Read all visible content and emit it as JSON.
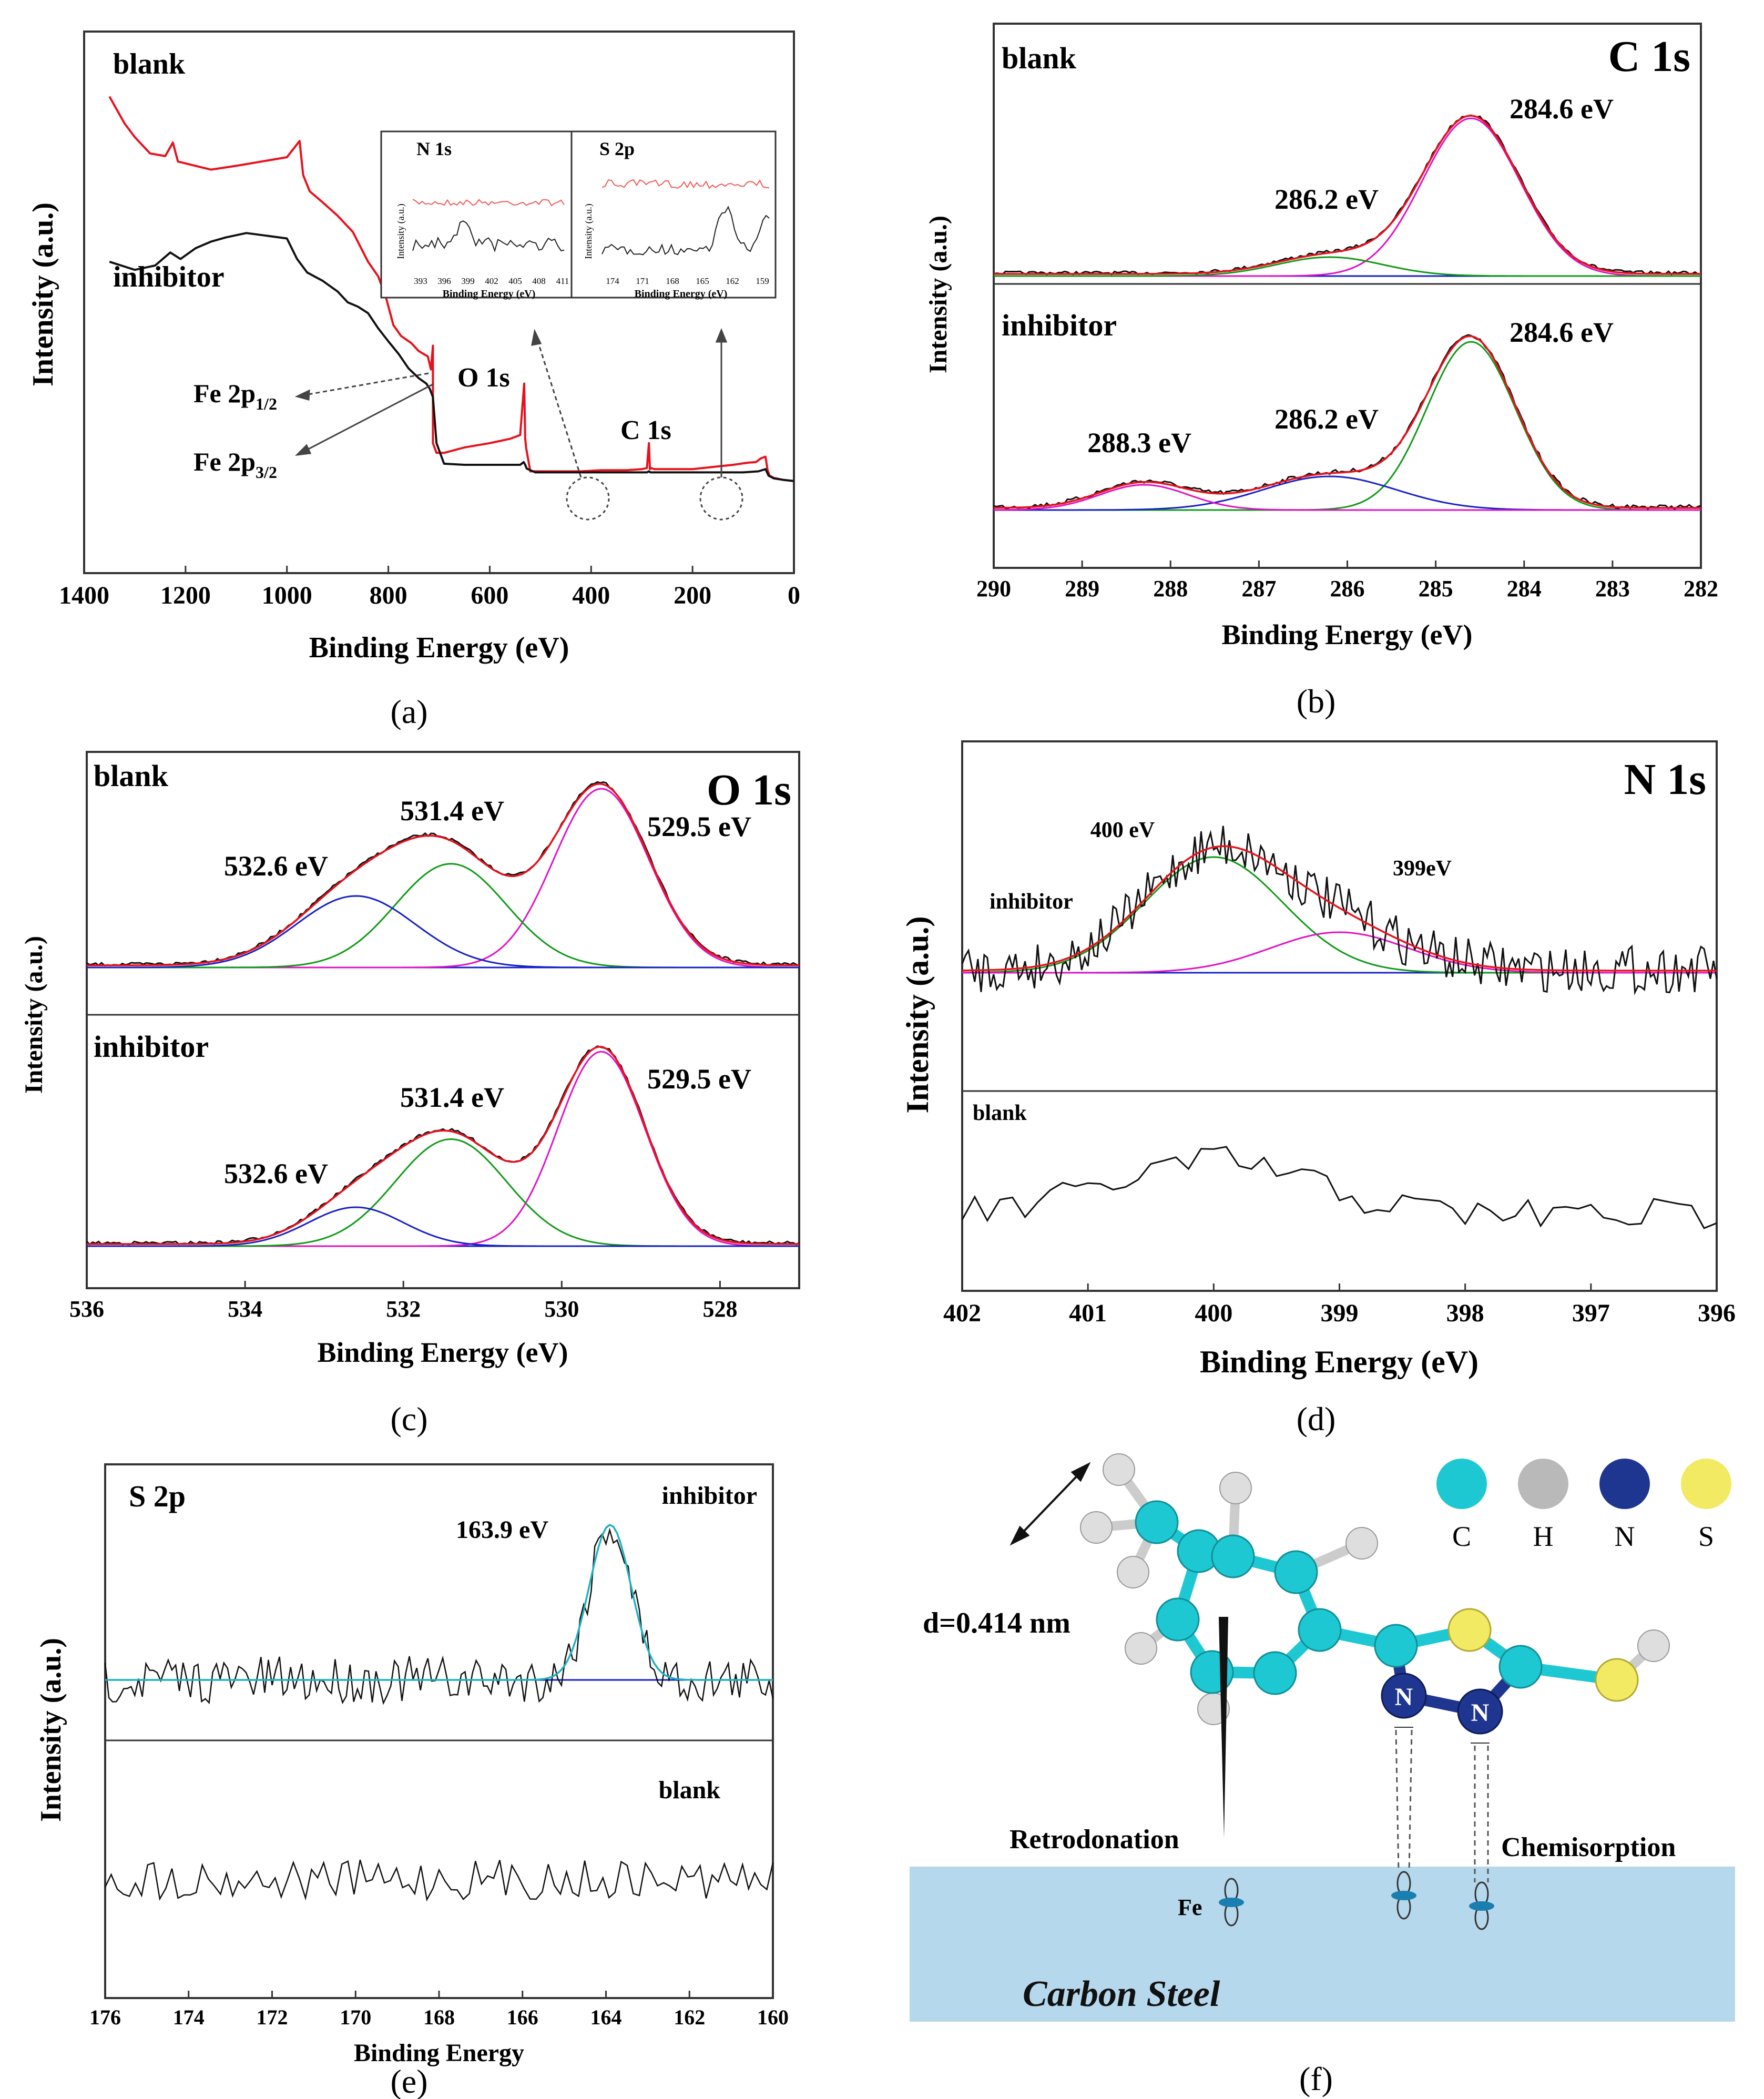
{
  "figure": {
    "panel_labels": [
      "(a)",
      "(b)",
      "(c)",
      "(d)",
      "(e)",
      "(f)"
    ]
  },
  "chart_data": [
    {
      "panel": "a",
      "type": "line",
      "title": "",
      "xlabel": "Binding Energy (eV)",
      "ylabel": "Intensity (a.u.)",
      "xlim": [
        1400,
        0
      ],
      "xticks": [
        "1400",
        "1200",
        "1000",
        "800",
        "600",
        "400",
        "200",
        "0"
      ],
      "series": [
        {
          "name": "blank",
          "color": "#e8111c",
          "x": [
            1350,
            1320,
            1300,
            1270,
            1240,
            1225,
            1215,
            1150,
            1100,
            1050,
            1000,
            975,
            968,
            955,
            930,
            900,
            870,
            840,
            820,
            805,
            790,
            775,
            755,
            740,
            722,
            716,
            712,
            712,
            705,
            690,
            650,
            600,
            560,
            540,
            532,
            530,
            528,
            520,
            500,
            470,
            420,
            380,
            330,
            300,
            290,
            286,
            284,
            282,
            275,
            250,
            200,
            160,
            120,
            90,
            75,
            65,
            56,
            52,
            48,
            40,
            20,
            0
          ],
          "y": [
            880,
            830,
            805,
            775,
            770,
            795,
            760,
            745,
            752,
            760,
            768,
            798,
            735,
            705,
            685,
            660,
            630,
            575,
            548,
            510,
            458,
            438,
            425,
            410,
            400,
            376,
            420,
            240,
            222,
            222,
            232,
            240,
            248,
            255,
            350,
            248,
            230,
            188,
            188,
            188,
            188,
            190,
            190,
            192,
            194,
            240,
            192,
            194,
            192,
            192,
            192,
            196,
            200,
            204,
            205,
            212,
            215,
            190,
            180,
            176,
            172,
            170
          ]
        },
        {
          "name": "inhibitor",
          "color": "#111111",
          "x": [
            1350,
            1300,
            1260,
            1230,
            1210,
            1180,
            1150,
            1120,
            1080,
            1040,
            1000,
            980,
            960,
            930,
            900,
            880,
            860,
            840,
            820,
            800,
            780,
            760,
            740,
            725,
            718,
            712,
            705,
            690,
            650,
            600,
            560,
            540,
            533,
            530,
            527,
            510,
            470,
            420,
            380,
            330,
            290,
            286,
            283,
            250,
            200,
            150,
            100,
            70,
            56,
            50,
            40,
            20,
            0
          ],
          "y": [
            575,
            560,
            568,
            592,
            580,
            600,
            612,
            620,
            628,
            623,
            618,
            580,
            555,
            540,
            520,
            500,
            492,
            480,
            452,
            428,
            405,
            378,
            360,
            350,
            340,
            325,
            240,
            202,
            200,
            200,
            200,
            200,
            205,
            200,
            193,
            186,
            186,
            186,
            186,
            186,
            186,
            188,
            186,
            186,
            186,
            186,
            186,
            188,
            192,
            180,
            175,
            172,
            170
          ]
        }
      ],
      "labels": [
        "blank",
        "inhibitor",
        "O 1s",
        "C 1s"
      ],
      "fe_labels": [
        {
          "main": "Fe 2p",
          "sub": "1/2"
        },
        {
          "main": "Fe 2p",
          "sub": "3/2"
        }
      ],
      "insets": [
        {
          "title": "N 1s",
          "xlabel": "Binding Energy (eV)",
          "ylabel": "Intensity (a.u.)",
          "xticks": [
            "393",
            "396",
            "399",
            "402",
            "405",
            "408",
            "411"
          ]
        },
        {
          "title": "S 2p",
          "xlabel": "Binding Energy (eV)",
          "ylabel": "Intensity (a.u.)",
          "xticks": [
            "174",
            "171",
            "168",
            "165",
            "162",
            "159"
          ]
        }
      ]
    },
    {
      "panel": "b",
      "type": "line",
      "title": "C 1s",
      "xlabel": "Binding Energy (eV)",
      "ylabel": "Intensity (a.u.)",
      "xlim": [
        290,
        282
      ],
      "xticks": [
        "290",
        "289",
        "288",
        "287",
        "286",
        "285",
        "284",
        "283",
        "282"
      ],
      "subplots": [
        {
          "label": "blank",
          "baseline": 0.02,
          "peaks": [
            {
              "center": 284.6,
              "height": 1.0,
              "width": 0.55,
              "color": "#e010c8",
              "label": "284.6 eV"
            },
            {
              "center": 286.2,
              "height": 0.12,
              "width": 0.6,
              "color": "#0e9a16",
              "label": "286.2 eV"
            }
          ]
        },
        {
          "label": "inhibitor",
          "baseline": 0.02,
          "peaks": [
            {
              "center": 284.6,
              "height": 1.0,
              "width": 0.5,
              "color": "#0e9a16",
              "label": "284.6 eV"
            },
            {
              "center": 286.2,
              "height": 0.2,
              "width": 0.75,
              "color": "#1620c8",
              "label": "286.2 eV"
            },
            {
              "center": 288.3,
              "height": 0.15,
              "width": 0.5,
              "color": "#e010c8",
              "label": "288.3 eV"
            }
          ]
        }
      ]
    },
    {
      "panel": "c",
      "type": "line",
      "title": "O 1s",
      "xlabel": "Binding Energy (eV)",
      "ylabel": "Intensity (a.u.)",
      "xlim": [
        536,
        527
      ],
      "xticks": [
        "536",
        "534",
        "532",
        "530",
        "528"
      ],
      "subplots": [
        {
          "label": "blank",
          "baseline": 0.02,
          "peaks": [
            {
              "center": 529.5,
              "height": 1.0,
              "width": 0.6,
              "color": "#e010c8",
              "label": "529.5 eV"
            },
            {
              "center": 531.4,
              "height": 0.58,
              "width": 0.7,
              "color": "#0e9a16",
              "label": "531.4 eV"
            },
            {
              "center": 532.6,
              "height": 0.4,
              "width": 0.75,
              "color": "#1620c8",
              "label": "532.6 eV"
            }
          ]
        },
        {
          "label": "inhibitor",
          "baseline": 0.02,
          "peaks": [
            {
              "center": 529.5,
              "height": 1.0,
              "width": 0.55,
              "color": "#e010c8",
              "label": "529.5 eV"
            },
            {
              "center": 531.4,
              "height": 0.55,
              "width": 0.7,
              "color": "#0e9a16",
              "label": "531.4 eV"
            },
            {
              "center": 532.6,
              "height": 0.2,
              "width": 0.6,
              "color": "#1620c8",
              "label": "532.6 eV"
            }
          ]
        }
      ]
    },
    {
      "panel": "d",
      "type": "line",
      "title": "N 1s",
      "xlabel": "Binding Energy (eV)",
      "ylabel": "Intensity (a.u.)",
      "xlim": [
        402,
        396
      ],
      "xticks": [
        "402",
        "401",
        "400",
        "399",
        "398",
        "397",
        "396"
      ],
      "inhibitor": {
        "label": "inhibitor",
        "peaks": [
          {
            "center": 400.0,
            "height": 1.0,
            "width": 0.55,
            "color": "#0e9a16",
            "label": "400 eV"
          },
          {
            "center": 399.0,
            "height": 0.35,
            "width": 0.55,
            "color": "#e010c8",
            "label": "399eV"
          }
        ]
      },
      "blank": {
        "label": "blank"
      }
    },
    {
      "panel": "e",
      "type": "line",
      "title": "S 2p",
      "xlabel": "Binding Energy",
      "ylabel": "Intensity (a.u.)",
      "xlim": [
        176,
        160
      ],
      "xticks": [
        "176",
        "174",
        "172",
        "170",
        "168",
        "166",
        "164",
        "162",
        "160"
      ],
      "inhibitor": {
        "label": "inhibitor",
        "peaks": [
          {
            "center": 163.9,
            "height": 1.0,
            "width": 0.5,
            "color": "#20b0c0",
            "label": "163.9 eV"
          }
        ]
      },
      "blank": {
        "label": "blank"
      }
    }
  ],
  "molecule": {
    "legend": [
      {
        "symbol": "C",
        "color": "#1ec8d2"
      },
      {
        "symbol": "H",
        "color": "#b9b9b9"
      },
      {
        "symbol": "N",
        "color": "#1f3690"
      },
      {
        "symbol": "S",
        "color": "#f2ea62"
      }
    ],
    "distance_label": "d=0.414 nm",
    "retrodonation_label": "Retrodonation",
    "chemisorption_label": "Chemisorption",
    "fe_label": "Fe",
    "surface_label": "Carbon Steel",
    "nitrogen_symbol": "N",
    "surface_color": "#b6d8ec"
  }
}
